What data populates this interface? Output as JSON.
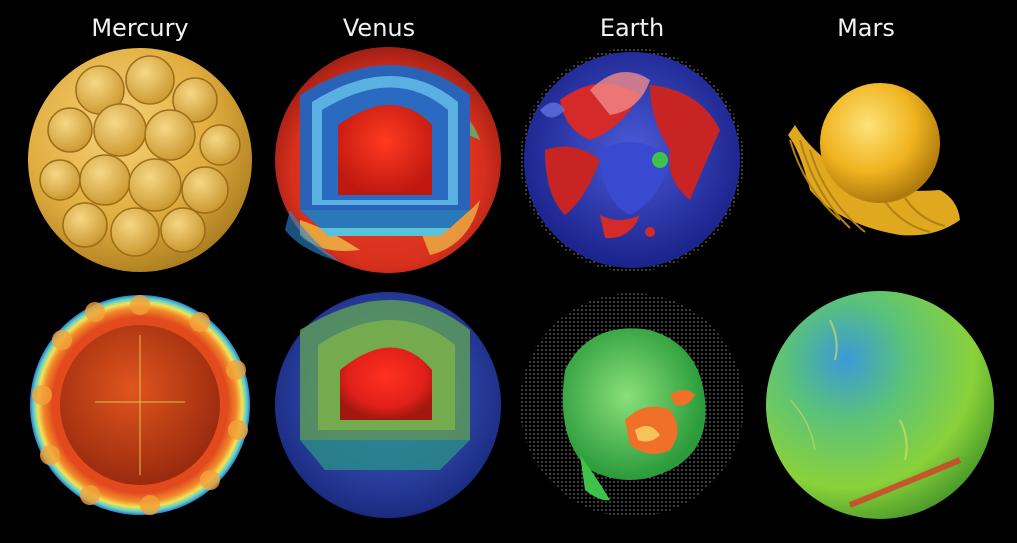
{
  "columns": [
    {
      "planet": "Mercury"
    },
    {
      "planet": "Venus"
    },
    {
      "planet": "Earth"
    },
    {
      "planet": "Mars"
    }
  ],
  "colors": {
    "background": "#000000",
    "label": "#f2f2f2",
    "mercury_top": "#e3b547",
    "venus_red": "#e0261c",
    "venus_blue": "#2a62b8",
    "earth_blue": "#2a3ab0",
    "earth_red": "#d42a2a",
    "earth_green": "#3fc24a",
    "mars_yellow": "#f0c12a",
    "mars_green": "#6ac23a"
  }
}
